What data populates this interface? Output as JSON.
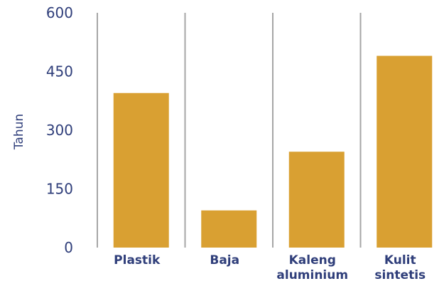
{
  "chart_data": {
    "type": "bar",
    "title": "",
    "xlabel": "",
    "ylabel": "Tahun",
    "categories": [
      [
        "Plastik"
      ],
      [
        "Baja"
      ],
      [
        "Kaleng",
        "aluminium"
      ],
      [
        "Kulit",
        "sintetis"
      ]
    ],
    "values": [
      395,
      95,
      245,
      490
    ],
    "ylim": [
      0,
      600
    ],
    "yticks": [
      "0",
      "150",
      "300",
      "450",
      "600"
    ],
    "grid": "vertical separators between categories",
    "legend": "none",
    "colors": {
      "bar": "#D9A032",
      "text": "#2F3E7A",
      "separator": "#A6A6A6"
    }
  }
}
